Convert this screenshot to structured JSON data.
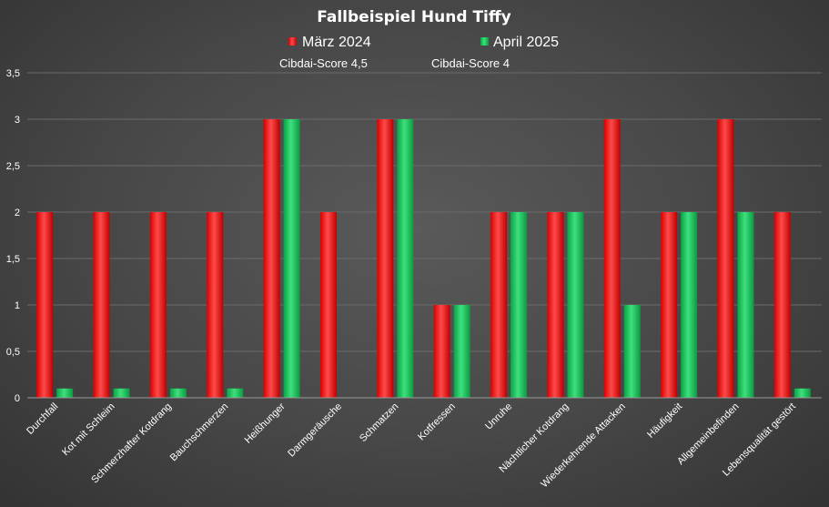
{
  "chart_data": {
    "type": "bar",
    "title": "Fallbeispiel Hund Tiffy",
    "categories": [
      "Durchfall",
      "Kot mit Schleim",
      "Schmerzhafter Kotdrang",
      "Bauchschmerzen",
      "Heißhunger",
      "Darmgeräusche",
      "Schmatzen",
      "Kotfressen",
      "Unruhe",
      "Nächtlicher Kotdrang",
      "Wiederkehrende Attacken",
      "Häufigkeit",
      "Allgemeinbefinden",
      "Lebensqualität gestört"
    ],
    "series": [
      {
        "name": "März 2024",
        "note": "Cibdai-Score 4,5",
        "color": "#ff1a1a",
        "values": [
          2,
          2,
          2,
          2,
          3,
          2,
          3,
          1,
          2,
          2,
          3,
          2,
          3,
          2
        ]
      },
      {
        "name": "April 2025",
        "note": "Cibdai-Score 4",
        "color": "#13c554",
        "values": [
          0.1,
          0.1,
          0.1,
          0.1,
          3,
          0,
          3,
          1,
          2,
          2,
          1,
          2,
          2,
          0.1
        ]
      }
    ],
    "y_ticks": [
      "0",
      "0,5",
      "1",
      "1,5",
      "2",
      "2,5",
      "3",
      "3,5"
    ],
    "ylim": [
      0,
      3.5
    ],
    "grid": true,
    "legend_position": "top-center",
    "xlabel": "",
    "ylabel": ""
  }
}
